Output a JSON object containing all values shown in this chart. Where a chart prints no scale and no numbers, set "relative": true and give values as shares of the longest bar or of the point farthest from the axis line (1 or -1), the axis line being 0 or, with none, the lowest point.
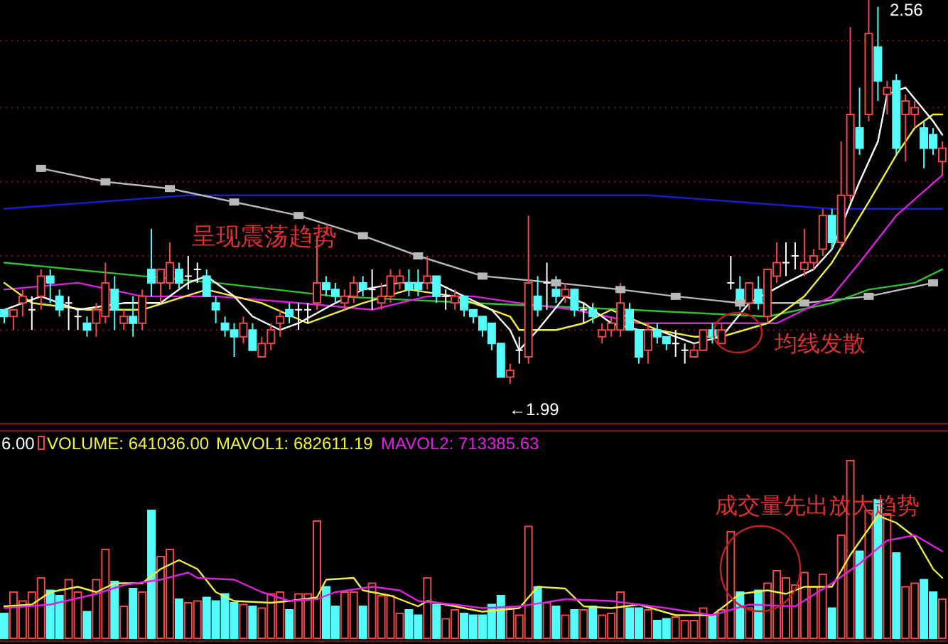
{
  "chart_data": [
    {
      "type": "candlestick",
      "grid": "y",
      "categories": [
        null,
        null,
        null,
        null,
        null,
        null,
        null,
        null,
        null,
        null,
        null,
        null,
        null,
        null,
        null,
        null,
        null,
        null,
        null,
        null,
        null,
        null,
        null,
        null,
        null,
        null,
        null,
        null,
        null,
        null,
        null,
        null,
        null,
        null,
        null,
        null,
        null,
        null,
        null,
        null,
        null,
        null,
        null,
        null,
        null,
        null,
        null,
        null,
        null,
        null,
        null,
        null,
        null,
        null,
        null,
        null,
        null,
        null,
        null,
        null,
        null,
        null,
        null,
        null,
        null,
        null,
        null,
        null,
        null,
        null,
        null,
        null,
        null,
        null,
        null,
        null,
        null,
        null,
        null,
        null,
        null,
        null,
        null,
        null,
        null,
        null,
        null,
        null,
        null,
        null,
        null,
        null,
        null,
        null,
        null,
        null,
        null,
        null,
        null,
        null,
        null,
        null,
        null
      ],
      "ohlc": [
        [
          2.1,
          2.1,
          2.08,
          2.09
        ],
        [
          2.09,
          2.1,
          2.07,
          2.1
        ],
        [
          2.11,
          2.13,
          2.09,
          2.12
        ],
        [
          2.1,
          2.12,
          2.07,
          2.1
        ],
        [
          2.12,
          2.16,
          2.1,
          2.15
        ],
        [
          2.15,
          2.16,
          2.11,
          2.14
        ],
        [
          2.12,
          2.13,
          2.09,
          2.1
        ],
        [
          2.11,
          2.12,
          2.07,
          2.11
        ],
        [
          2.09,
          2.1,
          2.07,
          2.09
        ],
        [
          2.08,
          2.09,
          2.06,
          2.07
        ],
        [
          2.08,
          2.11,
          2.06,
          2.1
        ],
        [
          2.09,
          2.17,
          2.08,
          2.14
        ],
        [
          2.13,
          2.15,
          2.07,
          2.1
        ],
        [
          2.08,
          2.1,
          2.07,
          2.09
        ],
        [
          2.09,
          2.12,
          2.06,
          2.08
        ],
        [
          2.08,
          2.13,
          2.07,
          2.12
        ],
        [
          2.16,
          2.22,
          2.12,
          2.14
        ],
        [
          2.14,
          2.16,
          2.11,
          2.16
        ],
        [
          2.14,
          2.2,
          2.13,
          2.17
        ],
        [
          2.16,
          2.17,
          2.13,
          2.14
        ],
        [
          2.15,
          2.18,
          2.13,
          2.15
        ],
        [
          2.16,
          2.17,
          2.14,
          2.16
        ],
        [
          2.15,
          2.16,
          2.12,
          2.12
        ],
        [
          2.11,
          2.12,
          2.08,
          2.1
        ],
        [
          2.08,
          2.09,
          2.06,
          2.07
        ],
        [
          2.07,
          2.08,
          2.03,
          2.06
        ],
        [
          2.06,
          2.09,
          2.05,
          2.08
        ],
        [
          2.07,
          2.08,
          2.04,
          2.04
        ],
        [
          2.03,
          2.06,
          2.03,
          2.05
        ],
        [
          2.05,
          2.08,
          2.04,
          2.07
        ],
        [
          2.08,
          2.1,
          2.06,
          2.09
        ],
        [
          2.1,
          2.11,
          2.08,
          2.09
        ],
        [
          2.1,
          2.11,
          2.07,
          2.1
        ],
        [
          2.1,
          2.11,
          2.08,
          2.1
        ],
        [
          2.11,
          2.21,
          2.1,
          2.14
        ],
        [
          2.14,
          2.15,
          2.12,
          2.13
        ],
        [
          2.13,
          2.14,
          2.11,
          2.12
        ],
        [
          2.11,
          2.13,
          2.1,
          2.12
        ],
        [
          2.12,
          2.15,
          2.11,
          2.14
        ],
        [
          2.14,
          2.15,
          2.12,
          2.13
        ],
        [
          2.13,
          2.16,
          2.1,
          2.13
        ],
        [
          2.11,
          2.14,
          2.1,
          2.12
        ],
        [
          2.12,
          2.16,
          2.11,
          2.15
        ],
        [
          2.14,
          2.16,
          2.13,
          2.15
        ],
        [
          2.14,
          2.16,
          2.12,
          2.13
        ],
        [
          2.14,
          2.16,
          2.12,
          2.13
        ],
        [
          2.14,
          2.18,
          2.13,
          2.15
        ],
        [
          2.15,
          2.15,
          2.11,
          2.12
        ],
        [
          2.12,
          2.13,
          2.1,
          2.12
        ],
        [
          2.11,
          2.13,
          2.1,
          2.12
        ],
        [
          2.12,
          2.12,
          2.09,
          2.1
        ],
        [
          2.1,
          2.1,
          2.08,
          2.09
        ],
        [
          2.09,
          2.09,
          2.06,
          2.07
        ],
        [
          2.08,
          2.08,
          2.04,
          2.05
        ],
        [
          2.05,
          2.05,
          2.0,
          2.0
        ],
        [
          2.0,
          2.02,
          1.99,
          2.01
        ],
        [
          2.04,
          2.06,
          2.02,
          2.04
        ],
        [
          2.03,
          2.24,
          2.02,
          2.14
        ],
        [
          2.12,
          2.15,
          2.09,
          2.1
        ],
        [
          2.14,
          2.17,
          2.1,
          2.14
        ],
        [
          2.13,
          2.15,
          2.11,
          2.12
        ],
        [
          2.12,
          2.14,
          2.11,
          2.13
        ],
        [
          2.13,
          2.13,
          2.09,
          2.1
        ],
        [
          2.1,
          2.11,
          2.08,
          2.1
        ],
        [
          2.1,
          2.11,
          2.08,
          2.09
        ],
        [
          2.06,
          2.08,
          2.05,
          2.07
        ],
        [
          2.07,
          2.09,
          2.06,
          2.08
        ],
        [
          2.07,
          2.14,
          2.06,
          2.11
        ],
        [
          2.1,
          2.11,
          2.07,
          2.07
        ],
        [
          2.07,
          2.07,
          2.02,
          2.03
        ],
        [
          2.04,
          2.08,
          2.02,
          2.07
        ],
        [
          2.07,
          2.08,
          2.05,
          2.06
        ],
        [
          2.06,
          2.06,
          2.04,
          2.05
        ],
        [
          2.05,
          2.07,
          2.03,
          2.05
        ],
        [
          2.04,
          2.05,
          2.02,
          2.04
        ],
        [
          2.03,
          2.05,
          2.03,
          2.04
        ],
        [
          2.04,
          2.07,
          2.04,
          2.07
        ],
        [
          2.07,
          2.08,
          2.05,
          2.06
        ],
        [
          2.05,
          2.08,
          2.05,
          2.07
        ],
        [
          2.14,
          2.18,
          2.13,
          2.14
        ],
        [
          2.13,
          2.15,
          2.1,
          2.11
        ],
        [
          2.11,
          2.14,
          2.1,
          2.14
        ],
        [
          2.13,
          2.15,
          2.1,
          2.11
        ],
        [
          2.09,
          2.16,
          2.08,
          2.16
        ],
        [
          2.15,
          2.2,
          2.14,
          2.17
        ],
        [
          2.17,
          2.2,
          2.15,
          2.17
        ],
        [
          2.18,
          2.2,
          2.16,
          2.18
        ],
        [
          2.16,
          2.22,
          2.15,
          2.17
        ],
        [
          2.17,
          2.19,
          2.16,
          2.18
        ],
        [
          2.19,
          2.25,
          2.18,
          2.24
        ],
        [
          2.24,
          2.25,
          2.19,
          2.2
        ],
        [
          2.2,
          2.35,
          2.19,
          2.27
        ],
        [
          2.27,
          2.52,
          2.26,
          2.39
        ],
        [
          2.37,
          2.43,
          2.33,
          2.34
        ],
        [
          2.39,
          2.56,
          2.38,
          2.51
        ],
        [
          2.49,
          2.55,
          2.41,
          2.44
        ],
        [
          2.42,
          2.44,
          2.39,
          2.43
        ],
        [
          2.44,
          2.45,
          2.33,
          2.34
        ],
        [
          2.39,
          2.42,
          2.32,
          2.41
        ],
        [
          2.39,
          2.41,
          2.37,
          2.4
        ],
        [
          2.37,
          2.38,
          2.31,
          2.34
        ],
        [
          2.36,
          2.37,
          2.33,
          2.34
        ],
        [
          2.32,
          2.35,
          2.3,
          2.34
        ]
      ],
      "colors": [
        "#54fcfc",
        "#f04848",
        "#f04848",
        "#ffffff",
        "#f04848",
        "#54fcfc",
        "#54fcfc",
        "#ffffff",
        "#ffffff",
        "#54fcfc",
        "#f04848",
        "#f04848",
        "#54fcfc",
        "#f04848",
        "#54fcfc",
        "#f04848",
        "#54fcfc",
        "#f04848",
        "#f04848",
        "#54fcfc",
        "#ffffff",
        "#ffffff",
        "#54fcfc",
        "#54fcfc",
        "#54fcfc",
        "#54fcfc",
        "#f04848",
        "#54fcfc",
        "#f04848",
        "#f04848",
        "#f04848",
        "#54fcfc",
        "#ffffff",
        "#ffffff",
        "#f04848",
        "#54fcfc",
        "#54fcfc",
        "#f04848",
        "#f04848",
        "#54fcfc",
        "#ffffff",
        "#f04848",
        "#f04848",
        "#f04848",
        "#54fcfc",
        "#54fcfc",
        "#f04848",
        "#54fcfc",
        "#ffffff",
        "#f04848",
        "#54fcfc",
        "#54fcfc",
        "#54fcfc",
        "#54fcfc",
        "#54fcfc",
        "#f04848",
        "#ffffff",
        "#f04848",
        "#54fcfc",
        "#ffffff",
        "#54fcfc",
        "#f04848",
        "#54fcfc",
        "#ffffff",
        "#54fcfc",
        "#f04848",
        "#f04848",
        "#f04848",
        "#54fcfc",
        "#54fcfc",
        "#f04848",
        "#54fcfc",
        "#54fcfc",
        "#ffffff",
        "#ffffff",
        "#f04848",
        "#f04848",
        "#54fcfc",
        "#f04848",
        "#ffffff",
        "#54fcfc",
        "#f04848",
        "#54fcfc",
        "#f04848",
        "#f04848",
        "#ffffff",
        "#ffffff",
        "#f04848",
        "#f04848",
        "#f04848",
        "#54fcfc",
        "#f04848",
        "#f04848",
        "#54fcfc",
        "#f04848",
        "#54fcfc",
        "#f04848",
        "#54fcfc",
        "#f04848",
        "#f04848",
        "#54fcfc",
        "#54fcfc",
        "#f04848"
      ],
      "yticks": [
        {
          "value": 2.5,
          "label": null
        },
        {
          "value": 2.4,
          "label": null
        },
        {
          "value": 2.29,
          "label": null
        },
        {
          "value": 2.18,
          "label": null
        },
        {
          "value": 2.07,
          "label": null
        }
      ],
      "series": [
        {
          "type": "line",
          "color": "#1c1cd0",
          "values": [
            2.25,
            null,
            null,
            null,
            null,
            null,
            null,
            null,
            null,
            null,
            2.26,
            null,
            null,
            null,
            null,
            null,
            null,
            null,
            null,
            null,
            2.27,
            null,
            null,
            null,
            null,
            null,
            null,
            null,
            null,
            null,
            2.27,
            null,
            null,
            null,
            null,
            null,
            null,
            null,
            null,
            null,
            2.27,
            null,
            null,
            null,
            null,
            null,
            null,
            null,
            null,
            null,
            2.27,
            null,
            null,
            null,
            null,
            null,
            null,
            null,
            null,
            null,
            2.27,
            null,
            null,
            null,
            null,
            null,
            null,
            null,
            null,
            null,
            2.27,
            null,
            null,
            null,
            null,
            null,
            null,
            null,
            null,
            null,
            2.26,
            null,
            null,
            null,
            null,
            null,
            null,
            null,
            null,
            null,
            2.25,
            null,
            null,
            null,
            null,
            null,
            null,
            null,
            null,
            null,
            null,
            null,
            2.25
          ]
        },
        {
          "type": "line",
          "color": "#b8b8b8",
          "marker": "square",
          "values": [
            null,
            null,
            null,
            null,
            2.31,
            null,
            null,
            null,
            null,
            null,
            null,
            2.29,
            null,
            null,
            null,
            null,
            null,
            null,
            2.28,
            null,
            null,
            null,
            null,
            null,
            null,
            2.26,
            null,
            null,
            null,
            null,
            null,
            null,
            2.24,
            null,
            null,
            null,
            null,
            null,
            null,
            2.21,
            null,
            null,
            null,
            null,
            null,
            2.18,
            null,
            null,
            null,
            null,
            null,
            null,
            2.15,
            null,
            null,
            null,
            null,
            null,
            null,
            null,
            2.14,
            null,
            null,
            null,
            null,
            null,
            null,
            2.13,
            null,
            null,
            null,
            null,
            null,
            2.12,
            null,
            null,
            null,
            null,
            null,
            null,
            2.11,
            null,
            null,
            null,
            null,
            null,
            null,
            2.11,
            null,
            null,
            null,
            null,
            null,
            null,
            2.12,
            null,
            null,
            null,
            null,
            null,
            null,
            2.14,
            null
          ]
        },
        {
          "type": "line",
          "color": "#30c030",
          "values": [
            2.17,
            null,
            null,
            null,
            null,
            null,
            null,
            null,
            null,
            null,
            null,
            null,
            null,
            null,
            null,
            2.15,
            null,
            null,
            null,
            null,
            null,
            null,
            null,
            2.14,
            null,
            null,
            null,
            null,
            null,
            null,
            null,
            null,
            null,
            null,
            null,
            null,
            2.12,
            null,
            null,
            null,
            null,
            null,
            null,
            null,
            null,
            null,
            null,
            null,
            null,
            null,
            null,
            2.11,
            null,
            null,
            null,
            null,
            null,
            null,
            null,
            null,
            null,
            null,
            null,
            null,
            null,
            null,
            null,
            null,
            2.1,
            null,
            null,
            null,
            null,
            null,
            null,
            null,
            null,
            null,
            null,
            null,
            null,
            null,
            null,
            2.09,
            null,
            null,
            null,
            null,
            null,
            null,
            2.11,
            null,
            null,
            null,
            2.13,
            null,
            null,
            null,
            null,
            2.14,
            null,
            null,
            2.16
          ]
        },
        {
          "type": "line",
          "color": "#e020e0",
          "values": [
            2.13,
            null,
            null,
            null,
            null,
            null,
            null,
            null,
            2.14,
            null,
            null,
            null,
            null,
            null,
            null,
            2.12,
            null,
            null,
            null,
            null,
            null,
            null,
            null,
            2.12,
            null,
            null,
            null,
            null,
            null,
            null,
            null,
            null,
            2.11,
            null,
            null,
            null,
            null,
            null,
            null,
            null,
            2.1,
            null,
            null,
            null,
            null,
            null,
            2.12,
            null,
            null,
            null,
            null,
            2.12,
            null,
            null,
            null,
            null,
            2.11,
            null,
            null,
            null,
            null,
            null,
            2.1,
            null,
            null,
            null,
            null,
            null,
            null,
            2.08,
            null,
            null,
            null,
            null,
            null,
            null,
            null,
            2.08,
            null,
            null,
            null,
            null,
            null,
            null,
            2.08,
            null,
            null,
            null,
            null,
            null,
            2.12,
            null,
            null,
            2.17,
            null,
            null,
            null,
            2.24,
            null,
            null,
            null,
            null,
            2.3
          ]
        },
        {
          "type": "line",
          "color": "#f0f040",
          "values": [
            2.14,
            null,
            null,
            2.11,
            null,
            null,
            null,
            null,
            null,
            2.1,
            null,
            null,
            null,
            null,
            null,
            2.1,
            null,
            null,
            null,
            null,
            null,
            null,
            2.13,
            null,
            null,
            null,
            null,
            null,
            2.11,
            null,
            null,
            null,
            null,
            2.08,
            null,
            null,
            null,
            null,
            null,
            2.11,
            null,
            null,
            null,
            null,
            2.13,
            null,
            null,
            null,
            null,
            2.12,
            null,
            null,
            null,
            null,
            null,
            2.09,
            2.07,
            null,
            null,
            null,
            2.07,
            null,
            null,
            2.08,
            null,
            null,
            2.1,
            null,
            null,
            null,
            null,
            2.07,
            null,
            null,
            null,
            2.06,
            null,
            null,
            2.06,
            null,
            null,
            null,
            null,
            2.08,
            null,
            null,
            null,
            2.12,
            null,
            null,
            2.17,
            null,
            null,
            null,
            2.26,
            null,
            null,
            2.33,
            null,
            2.37,
            null,
            2.39,
            2.39
          ]
        },
        {
          "type": "line",
          "color": "#ffffff",
          "values": [
            2.1,
            null,
            null,
            null,
            2.12,
            null,
            null,
            null,
            2.1,
            null,
            null,
            null,
            null,
            2.11,
            null,
            null,
            null,
            2.11,
            null,
            null,
            2.14,
            null,
            2.15,
            null,
            null,
            2.12,
            null,
            2.09,
            null,
            null,
            2.07,
            null,
            2.08,
            null,
            null,
            null,
            2.11,
            null,
            null,
            2.13,
            null,
            null,
            null,
            2.14,
            null,
            null,
            null,
            2.14,
            null,
            null,
            null,
            null,
            null,
            2.1,
            null,
            2.07,
            2.04,
            null,
            2.07,
            null,
            null,
            2.12,
            null,
            2.11,
            null,
            null,
            2.08,
            null,
            null,
            2.07,
            null,
            2.07,
            null,
            null,
            null,
            2.05,
            null,
            null,
            2.06,
            null,
            null,
            2.11,
            null,
            null,
            null,
            2.14,
            null,
            null,
            2.16,
            null,
            2.19,
            null,
            null,
            2.29,
            null,
            2.35,
            2.42,
            null,
            2.43,
            null,
            null,
            2.38,
            2.36
          ]
        }
      ],
      "annotations": [
        "呈现震荡趋势",
        "均线发散",
        "←1.99",
        "2.56"
      ]
    },
    {
      "type": "bar",
      "relative": true,
      "legend": "top left",
      "categories": [
        null,
        null,
        null,
        null,
        null,
        null,
        null,
        null,
        null,
        null,
        null,
        null,
        null,
        null,
        null,
        null,
        null,
        null,
        null,
        null,
        null,
        null,
        null,
        null,
        null,
        null,
        null,
        null,
        null,
        null,
        null,
        null,
        null,
        null,
        null,
        null,
        null,
        null,
        null,
        null,
        null,
        null,
        null,
        null,
        null,
        null,
        null,
        null,
        null,
        null,
        null,
        null,
        null,
        null,
        null,
        null,
        null,
        null,
        null,
        null,
        null,
        null,
        null,
        null,
        null,
        null,
        null,
        null,
        null,
        null,
        null,
        null,
        null,
        null,
        null,
        null,
        null,
        null,
        null,
        null,
        null,
        null,
        null,
        null,
        null,
        null,
        null,
        null,
        null,
        null,
        null,
        null,
        null,
        null,
        null,
        null,
        null,
        null,
        null,
        null,
        null,
        null,
        null
      ],
      "series": [
        {
          "name": "VOLUME: 641036.00",
          "values": [
            0.14,
            0.26,
            0.21,
            0.26,
            0.34,
            0.27,
            0.24,
            0.33,
            0.26,
            0.15,
            0.33,
            0.5,
            0.32,
            0.18,
            0.28,
            0.26,
            0.72,
            0.46,
            0.5,
            0.22,
            0.2,
            0.21,
            0.23,
            0.21,
            0.25,
            0.2,
            0.19,
            0.18,
            0.17,
            0.25,
            0.26,
            0.16,
            0.25,
            0.25,
            0.66,
            0.29,
            0.18,
            0.26,
            0.26,
            0.18,
            0.31,
            0.24,
            0.24,
            0.14,
            0.16,
            0.13,
            0.34,
            0.19,
            0.11,
            0.16,
            0.14,
            0.13,
            0.13,
            0.19,
            0.24,
            0.17,
            0.13,
            0.63,
            0.29,
            0.2,
            0.18,
            0.13,
            0.16,
            0.16,
            0.18,
            0.13,
            0.14,
            0.26,
            0.17,
            0.17,
            0.16,
            0.1,
            0.11,
            0.12,
            0.1,
            0.1,
            0.17,
            0.13,
            0.16,
            0.6,
            0.26,
            0.17,
            0.27,
            0.31,
            0.38,
            0.34,
            0.3,
            0.37,
            0.29,
            0.36,
            0.17,
            0.58,
            1,
            0.49,
            0.72,
            0.78,
            0.7,
            0.48,
            0.29,
            0.31,
            0.33,
            0.26,
            0.22
          ],
          "colors": [
            "#54fcfc",
            "#f04848",
            "#f04848",
            "#f04848",
            "#f04848",
            "#54fcfc",
            "#54fcfc",
            "#f04848",
            "#f04848",
            "#54fcfc",
            "#f04848",
            "#f04848",
            "#54fcfc",
            "#f04848",
            "#54fcfc",
            "#f04848",
            "#54fcfc",
            "#f04848",
            "#f04848",
            "#54fcfc",
            "#f04848",
            "#f04848",
            "#54fcfc",
            "#54fcfc",
            "#54fcfc",
            "#54fcfc",
            "#f04848",
            "#54fcfc",
            "#f04848",
            "#f04848",
            "#f04848",
            "#54fcfc",
            "#f04848",
            "#f04848",
            "#f04848",
            "#54fcfc",
            "#54fcfc",
            "#f04848",
            "#f04848",
            "#54fcfc",
            "#f04848",
            "#f04848",
            "#f04848",
            "#f04848",
            "#54fcfc",
            "#54fcfc",
            "#f04848",
            "#54fcfc",
            "#f04848",
            "#f04848",
            "#54fcfc",
            "#54fcfc",
            "#54fcfc",
            "#54fcfc",
            "#54fcfc",
            "#f04848",
            "#f04848",
            "#f04848",
            "#54fcfc",
            "#f04848",
            "#54fcfc",
            "#f04848",
            "#54fcfc",
            "#f04848",
            "#54fcfc",
            "#f04848",
            "#f04848",
            "#f04848",
            "#54fcfc",
            "#54fcfc",
            "#f04848",
            "#54fcfc",
            "#54fcfc",
            "#f04848",
            "#f04848",
            "#f04848",
            "#f04848",
            "#54fcfc",
            "#f04848",
            "#f04848",
            "#54fcfc",
            "#f04848",
            "#54fcfc",
            "#f04848",
            "#f04848",
            "#f04848",
            "#f04848",
            "#f04848",
            "#f04848",
            "#f04848",
            "#54fcfc",
            "#f04848",
            "#f04848",
            "#54fcfc",
            "#f04848",
            "#54fcfc",
            "#f04848",
            "#54fcfc",
            "#f04848",
            "#f04848",
            "#54fcfc",
            "#54fcfc",
            "#f04848"
          ]
        },
        {
          "name": "MAVOL1: 682611.19",
          "type": "line",
          "color": "#f0f040",
          "values": [
            0.18,
            null,
            null,
            0.19,
            null,
            0.26,
            null,
            null,
            0.29,
            null,
            0.26,
            null,
            0.31,
            null,
            null,
            0.31,
            null,
            0.39,
            null,
            0.44,
            null,
            0.39,
            null,
            0.26,
            null,
            0.21,
            null,
            null,
            null,
            0.2,
            null,
            0.21,
            null,
            null,
            0.23,
            0.33,
            null,
            null,
            0.34,
            0.27,
            null,
            null,
            0.24,
            null,
            null,
            0.18,
            0.21,
            null,
            null,
            0.18,
            null,
            null,
            0.15,
            null,
            null,
            null,
            0.17,
            null,
            0.29,
            null,
            null,
            0.28,
            null,
            0.18,
            null,
            null,
            0.17,
            null,
            null,
            0.19,
            null,
            null,
            null,
            0.13,
            null,
            null,
            null,
            0.13,
            null,
            null,
            0.25,
            null,
            null,
            0.27,
            null,
            0.25,
            null,
            0.29,
            null,
            null,
            0.29,
            null,
            0.47,
            null,
            null,
            0.69,
            null,
            0.65,
            null,
            0.57,
            null,
            0.39,
            0.34
          ]
        },
        {
          "name": "MAVOL2: 713385.63",
          "type": "line",
          "color": "#e020e0",
          "values": [
            0.17,
            null,
            null,
            null,
            null,
            0.19,
            null,
            null,
            null,
            null,
            0.25,
            null,
            null,
            0.3,
            null,
            null,
            null,
            0.33,
            null,
            null,
            0.37,
            0.34,
            null,
            null,
            null,
            0.33,
            null,
            null,
            0.26,
            null,
            null,
            0.21,
            null,
            null,
            0.22,
            null,
            0.26,
            null,
            null,
            null,
            0.29,
            null,
            null,
            0.27,
            null,
            0.21,
            null,
            null,
            null,
            0.19,
            null,
            null,
            0.17,
            null,
            null,
            null,
            0.18,
            null,
            null,
            null,
            null,
            0.22,
            null,
            null,
            null,
            null,
            0.21,
            null,
            null,
            null,
            null,
            null,
            0.17,
            null,
            null,
            null,
            null,
            0.13,
            null,
            null,
            null,
            0.19,
            null,
            null,
            null,
            null,
            0.18,
            null,
            null,
            null,
            0.31,
            null,
            null,
            0.42,
            null,
            null,
            0.55,
            null,
            null,
            0.58,
            null,
            null,
            0.49
          ]
        }
      ],
      "annotations": [
        "6.00",
        "成交量先出放大趋势"
      ]
    }
  ]
}
